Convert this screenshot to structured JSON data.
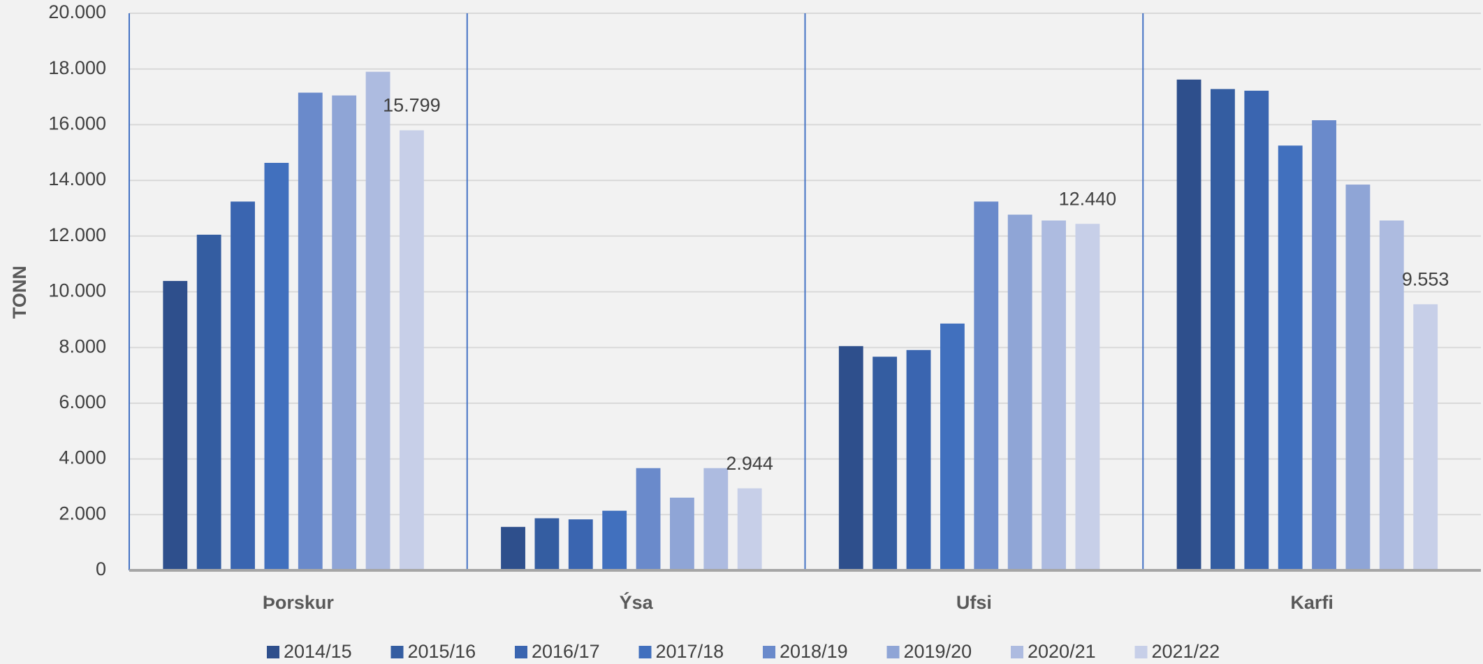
{
  "chart_data": {
    "type": "bar",
    "y_label": "TONN",
    "categories": [
      "Þorskur",
      "Ýsa",
      "Ufsi",
      "Karfi"
    ],
    "series": [
      {
        "name": "2014/15",
        "color": "#2e4f8c",
        "values": [
          10390,
          1560,
          8050,
          17620
        ]
      },
      {
        "name": "2015/16",
        "color": "#345da1",
        "values": [
          12050,
          1870,
          7670,
          17280
        ]
      },
      {
        "name": "2016/17",
        "color": "#3a65b0",
        "values": [
          13240,
          1830,
          7910,
          17220
        ]
      },
      {
        "name": "2017/18",
        "color": "#4170be",
        "values": [
          14630,
          2140,
          8860,
          15250
        ]
      },
      {
        "name": "2018/19",
        "color": "#6a8acb",
        "values": [
          17150,
          3670,
          13240,
          16160
        ]
      },
      {
        "name": "2019/20",
        "color": "#8fa5d6",
        "values": [
          17050,
          2610,
          12770,
          13850
        ]
      },
      {
        "name": "2020/21",
        "color": "#adbbe0",
        "values": [
          17900,
          3670,
          12560,
          12560
        ]
      },
      {
        "name": "2021/22",
        "color": "#c7cfe8",
        "values": [
          15799,
          2944,
          12440,
          9553
        ],
        "value_labels": [
          "15.799",
          "2.944",
          "12.440",
          "9.553"
        ]
      }
    ],
    "ylim": [
      0,
      20000
    ],
    "yticks": [
      0,
      {
        "value": 2000,
        "label": "2.000"
      },
      {
        "value": 4000,
        "label": "4.000"
      },
      {
        "value": 6000,
        "label": "6.000"
      },
      {
        "value": 8000,
        "label": "8.000"
      },
      {
        "value": 10000,
        "label": "10.000"
      },
      {
        "value": 12000,
        "label": "12.000"
      },
      {
        "value": 14000,
        "label": "14.000"
      },
      {
        "value": 16000,
        "label": "16.000"
      },
      {
        "value": 18000,
        "label": "18.000"
      },
      {
        "value": 20000,
        "label": "20.000"
      }
    ],
    "grid": true,
    "legend": "bottom"
  }
}
